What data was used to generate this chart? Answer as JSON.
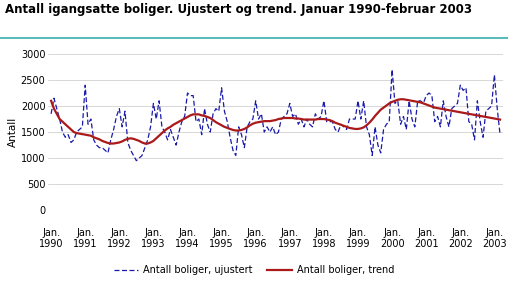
{
  "title": "Antall igangsatte boliger. Ujustert og trend. Januar 1990-februar 2003",
  "ylabel": "Antall",
  "ylim": [
    0,
    3000
  ],
  "yticks": [
    0,
    500,
    1000,
    1500,
    2000,
    2500,
    3000
  ],
  "xlabel_line1": [
    "Jan.",
    "Jan.",
    "Jan.",
    "Jan.",
    "Jan.",
    "Jan.",
    "Jan.",
    "Jan.",
    "Jan.",
    "Jan.",
    "Jan.",
    "Jan.",
    "Jan.",
    "Jan."
  ],
  "xlabel_line2": [
    "1990",
    "1991",
    "1992",
    "1993",
    "1994",
    "1995",
    "1996",
    "1997",
    "1998",
    "1999",
    "2000",
    "2001",
    "2002",
    "2003"
  ],
  "dashed_color": "#1a1aaa",
  "trend_color": "#aa1a1a",
  "legend_dashed": "Antall boliger, ujustert",
  "legend_trend": "Antall boliger, trend",
  "ujustert": [
    1850,
    2150,
    1950,
    1750,
    1500,
    1400,
    1450,
    1300,
    1350,
    1500,
    1550,
    1600,
    2400,
    1650,
    1750,
    1350,
    1250,
    1200,
    1200,
    1150,
    1100,
    1350,
    1550,
    1800,
    1950,
    1600,
    1900,
    1300,
    1150,
    1050,
    950,
    1000,
    1050,
    1200,
    1350,
    1600,
    2050,
    1750,
    2100,
    1600,
    1500,
    1350,
    1550,
    1400,
    1250,
    1500,
    1700,
    1800,
    2250,
    2200,
    2200,
    1700,
    1750,
    1450,
    1950,
    1650,
    1500,
    1850,
    1950,
    1900,
    2350,
    1900,
    1700,
    1400,
    1150,
    1050,
    1600,
    1450,
    1200,
    1600,
    1700,
    1750,
    2100,
    1750,
    1850,
    1500,
    1600,
    1500,
    1600,
    1450,
    1500,
    1750,
    1800,
    1850,
    2050,
    1800,
    1850,
    1650,
    1750,
    1600,
    1750,
    1650,
    1600,
    1850,
    1750,
    1800,
    2100,
    1700,
    1700,
    1700,
    1550,
    1500,
    1650,
    1600,
    1550,
    1750,
    1750,
    1750,
    2100,
    1750,
    2100,
    1600,
    1450,
    1050,
    1600,
    1250,
    1100,
    1550,
    1650,
    1700,
    2700,
    2050,
    2100,
    1650,
    1800,
    1550,
    2100,
    1750,
    1600,
    2100,
    2100,
    2050,
    2200,
    2250,
    2200,
    1700,
    1800,
    1600,
    2100,
    1800,
    1600,
    1950,
    2000,
    2050,
    2400,
    2300,
    2350,
    1700,
    1650,
    1350,
    2100,
    1700,
    1400,
    1900,
    1950,
    2000,
    2600,
    1950,
    1450
  ],
  "trend": [
    2100,
    1950,
    1850,
    1750,
    1700,
    1650,
    1600,
    1550,
    1500,
    1480,
    1470,
    1460,
    1450,
    1440,
    1430,
    1400,
    1380,
    1360,
    1330,
    1310,
    1290,
    1280,
    1280,
    1290,
    1300,
    1320,
    1350,
    1370,
    1380,
    1370,
    1350,
    1330,
    1300,
    1280,
    1280,
    1300,
    1330,
    1380,
    1430,
    1480,
    1530,
    1570,
    1600,
    1640,
    1670,
    1700,
    1730,
    1760,
    1790,
    1820,
    1840,
    1840,
    1840,
    1820,
    1810,
    1790,
    1770,
    1730,
    1690,
    1660,
    1630,
    1600,
    1580,
    1560,
    1540,
    1530,
    1530,
    1540,
    1560,
    1590,
    1630,
    1660,
    1680,
    1690,
    1700,
    1710,
    1710,
    1710,
    1720,
    1730,
    1750,
    1760,
    1770,
    1770,
    1770,
    1770,
    1760,
    1760,
    1750,
    1740,
    1740,
    1740,
    1740,
    1740,
    1750,
    1750,
    1750,
    1740,
    1730,
    1710,
    1680,
    1660,
    1640,
    1620,
    1600,
    1580,
    1570,
    1560,
    1560,
    1570,
    1590,
    1630,
    1680,
    1740,
    1810,
    1870,
    1930,
    1970,
    2010,
    2050,
    2080,
    2100,
    2120,
    2130,
    2130,
    2120,
    2110,
    2100,
    2090,
    2080,
    2070,
    2050,
    2030,
    2010,
    1990,
    1970,
    1960,
    1950,
    1940,
    1930,
    1920,
    1910,
    1900,
    1890,
    1880,
    1870,
    1860,
    1850,
    1840,
    1830,
    1820,
    1810,
    1800,
    1790,
    1780,
    1770,
    1760,
    1750,
    1740
  ],
  "background_color": "#ffffff",
  "grid_color": "#c8c8c8",
  "title_fontsize": 8.5,
  "axis_fontsize": 7.5,
  "tick_fontsize": 7.0,
  "title_color": "#000000",
  "title_line_color": "#3aaeae"
}
